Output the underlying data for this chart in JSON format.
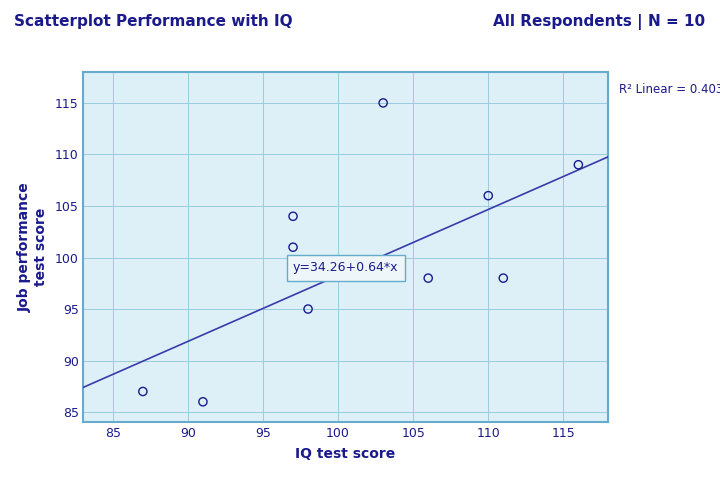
{
  "title_left": "Scatterplot Performance with IQ",
  "title_right": "All Respondents | N = 10",
  "xlabel": "IQ test score",
  "ylabel": "Job performance\ntest score",
  "x_data": [
    87,
    91,
    97,
    97,
    98,
    103,
    106,
    110,
    111,
    116
  ],
  "y_data": [
    87,
    86,
    104,
    101,
    95,
    115,
    98,
    106,
    98,
    109
  ],
  "xlim": [
    83,
    118
  ],
  "ylim": [
    84,
    118
  ],
  "xticks": [
    85,
    90,
    95,
    100,
    105,
    110,
    115
  ],
  "yticks": [
    85,
    90,
    95,
    100,
    105,
    110,
    115
  ],
  "fit_intercept": 34.26,
  "fit_slope": 0.64,
  "r2_label": "R² Linear = 0.403",
  "eq_label": "y=34.26+0.64*x",
  "eq_x": 97,
  "eq_y": 99,
  "dot_color": "#1a1a8c",
  "line_color": "#3a3aaa",
  "bg_color": "#ddf0f8",
  "outer_bg": "#ffffff",
  "grid_color": "#99ccdd",
  "title_color": "#1a1a8c",
  "axis_color": "#1a1a8c",
  "border_color": "#66aacc"
}
